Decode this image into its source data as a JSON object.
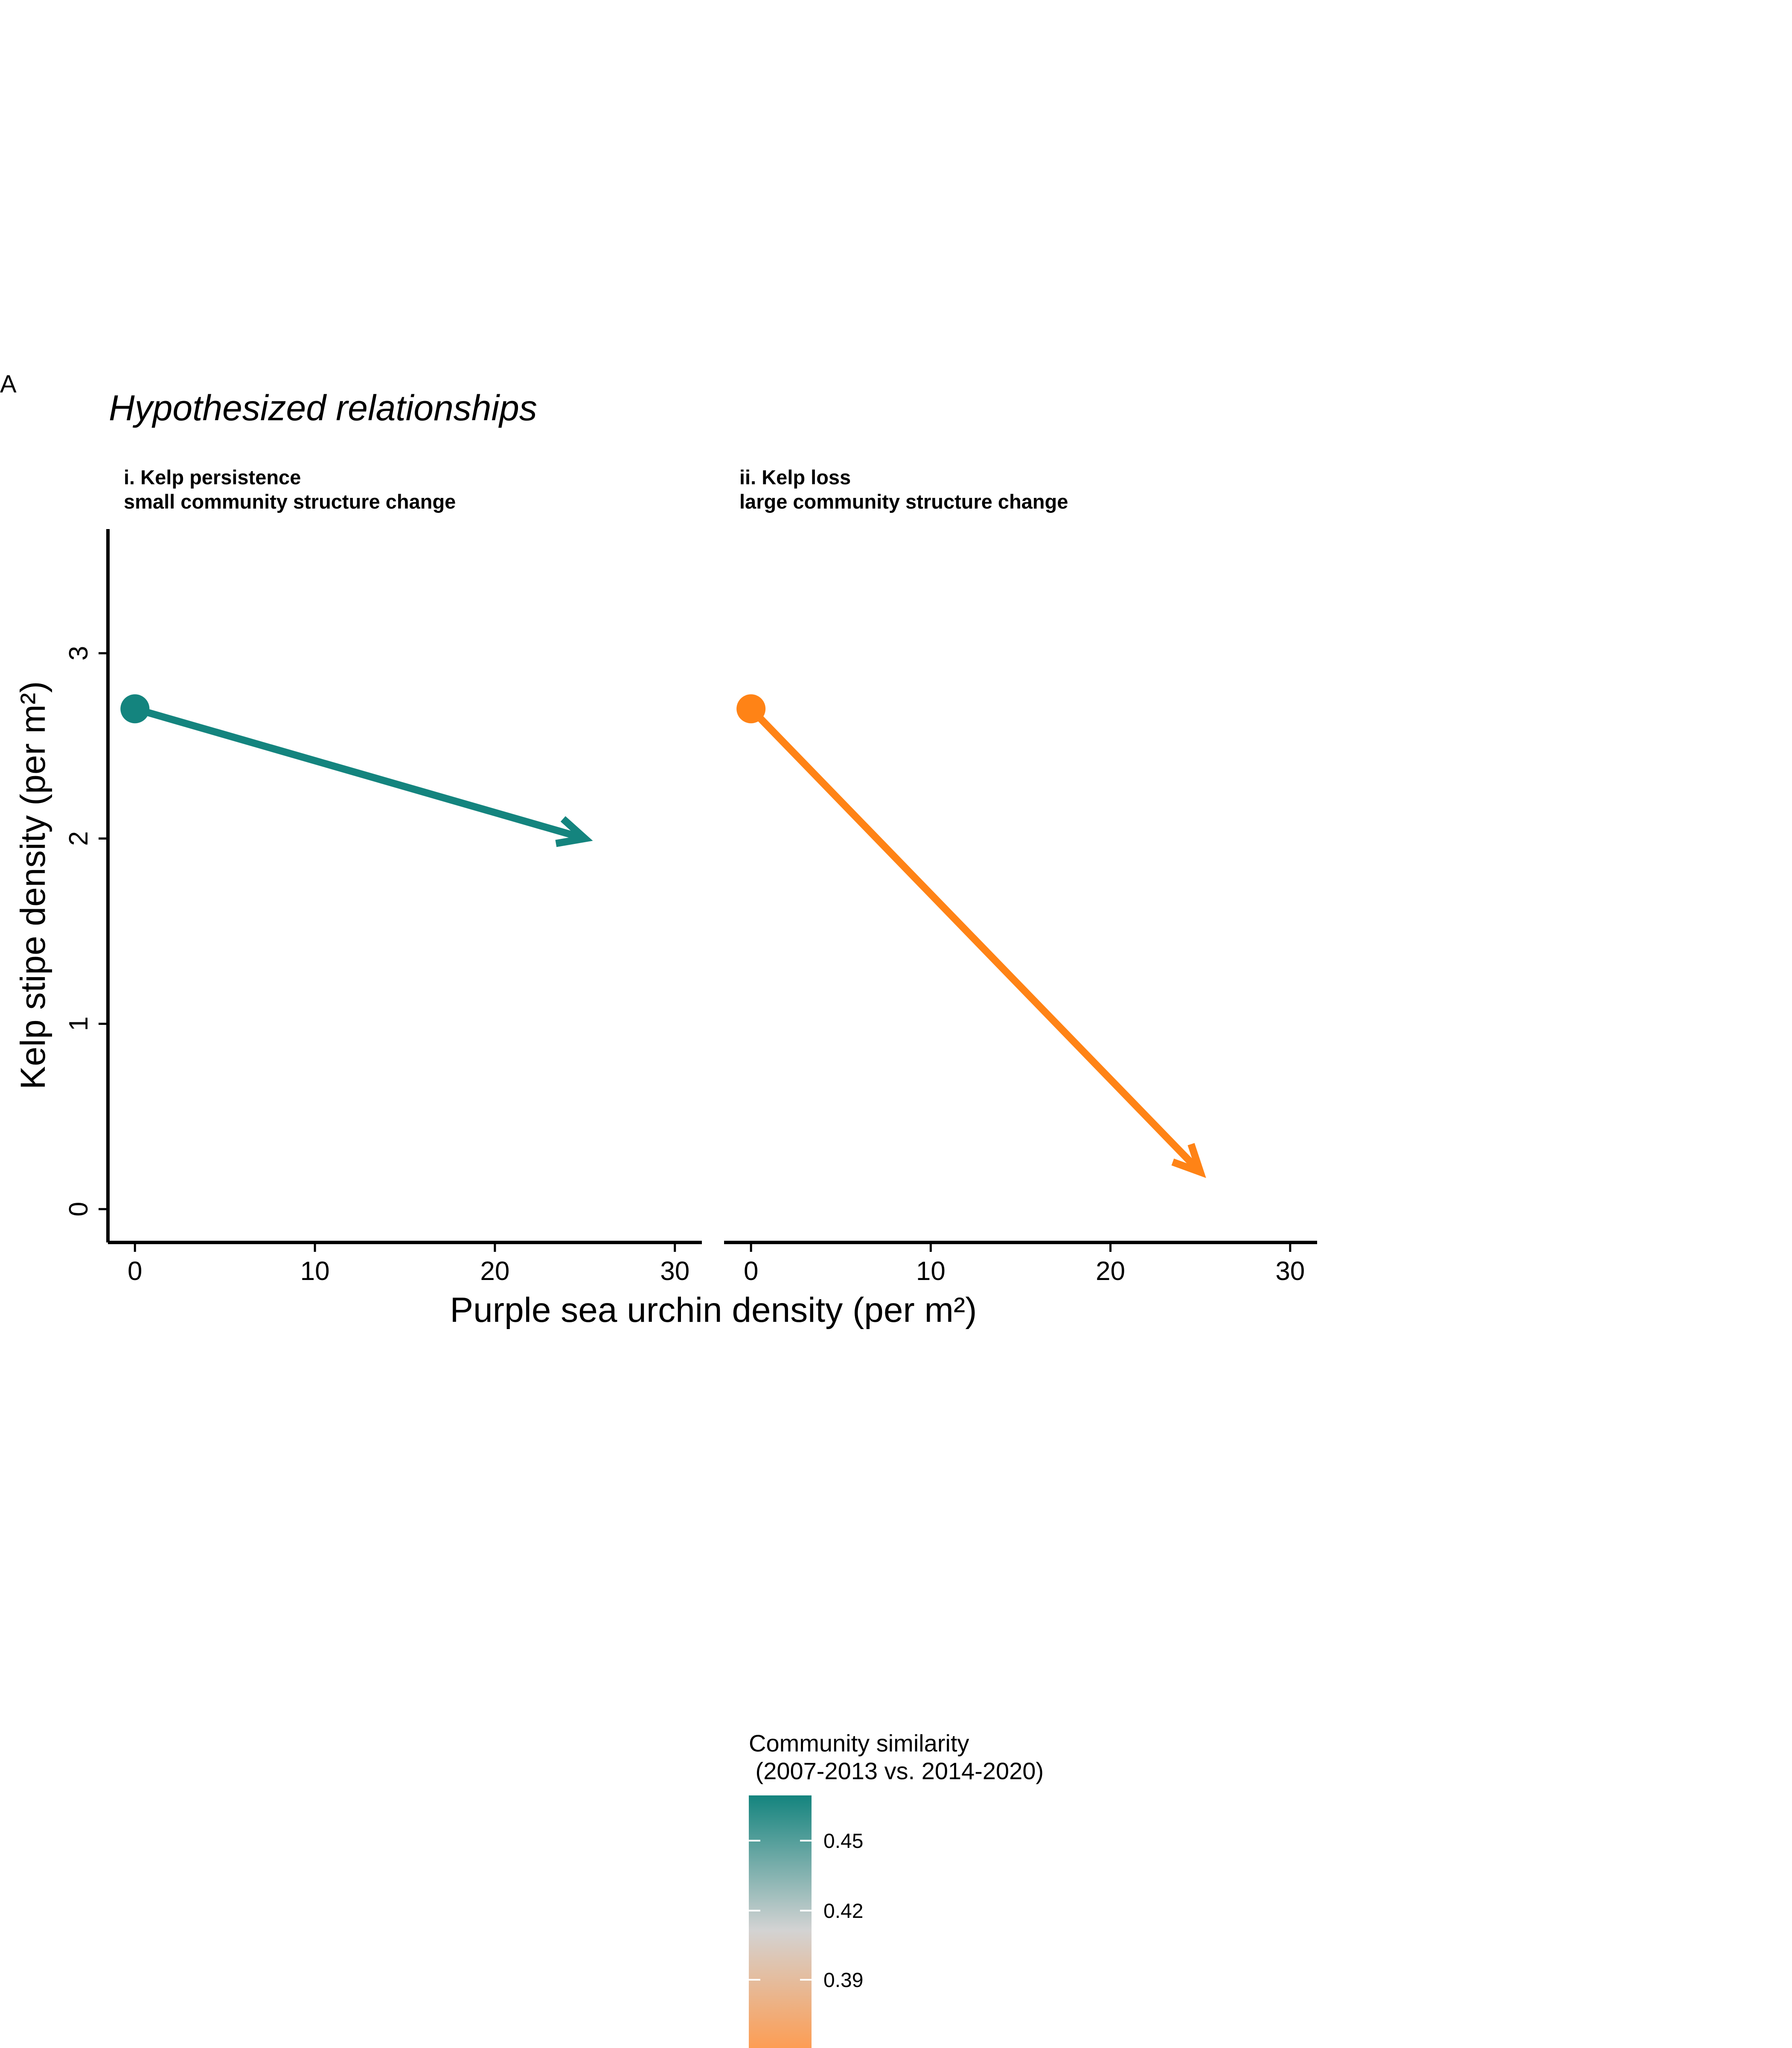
{
  "figure": {
    "panel_tag": "A",
    "title": "Hypothesized relationships",
    "xlabel": "Purple sea urchin density (per m²)",
    "ylabel": "Kelp stipe density (per m²)"
  },
  "chart_data": [
    {
      "type": "line",
      "facet_title_line1": "i. Kelp persistence",
      "facet_title_line2": "small community structure change",
      "xlim": [
        -1.5,
        31.5
      ],
      "ylim": [
        -0.18,
        3.67
      ],
      "x_ticks": [
        0,
        10,
        20,
        30
      ],
      "y_ticks": [
        0,
        1,
        2,
        3
      ],
      "series": [
        {
          "x": [
            0,
            25
          ],
          "y": [
            2.7,
            2.0
          ],
          "color": "#14847E",
          "marker": "circle-start",
          "arrow": "end"
        }
      ]
    },
    {
      "type": "line",
      "facet_title_line1": "ii. Kelp loss",
      "facet_title_line2": "large community structure change",
      "xlim": [
        -1.5,
        31.5
      ],
      "ylim": [
        -0.18,
        3.67
      ],
      "x_ticks": [
        0,
        10,
        20,
        30
      ],
      "y_ticks": [
        0,
        1,
        2,
        3
      ],
      "series": [
        {
          "x": [
            0,
            25
          ],
          "y": [
            2.7,
            0.2
          ],
          "color": "#FF8316",
          "marker": "circle-start",
          "arrow": "end"
        }
      ]
    }
  ],
  "legend": {
    "title_line1": "Community similarity",
    "title_line2": " (2007-2013 vs. 2014-2020)",
    "breaks": [
      "0.45",
      "0.42",
      "0.39"
    ],
    "colors": {
      "top": "#14847E",
      "middle": "#D3D3D3",
      "bottom": "#FF9A4D"
    }
  }
}
